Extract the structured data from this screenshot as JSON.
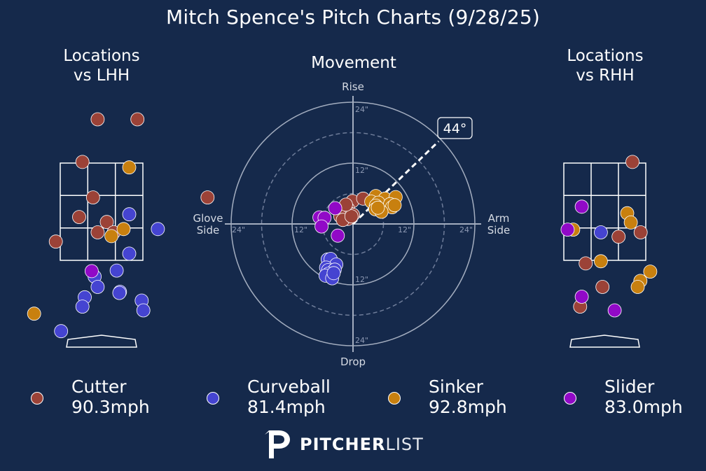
{
  "title": "Mitch Spence's Pitch Charts (9/28/25)",
  "panels": {
    "lhh": {
      "title_line1": "Locations",
      "title_line2": "vs LHH"
    },
    "rhh": {
      "title_line1": "Locations",
      "title_line2": "vs RHH"
    },
    "movement": {
      "title": "Movement",
      "labels": {
        "top": "Rise",
        "bottom": "Drop",
        "left_1": "Glove",
        "left_2": "Side",
        "right_1": "Arm",
        "right_2": "Side"
      },
      "rings": [
        {
          "label": "12\"",
          "value": 12
        },
        {
          "label": "24\"",
          "value": 24
        }
      ],
      "arm_angle_label": "44°",
      "arm_angle": 44
    }
  },
  "pitch_colors": {
    "Cutter": "#9b4237",
    "Curveball": "#4544d1",
    "Sinker": "#c8800f",
    "Slider": "#9109c7"
  },
  "legend": [
    {
      "pitch": "Cutter",
      "speed": "90.3mph",
      "color": "#9b4237"
    },
    {
      "pitch": "Curveball",
      "speed": "81.4mph",
      "color": "#4544d1"
    },
    {
      "pitch": "Sinker",
      "speed": "92.8mph",
      "color": "#c8800f"
    },
    {
      "pitch": "Slider",
      "speed": "83.0mph",
      "color": "#9109c7"
    }
  ],
  "chart_data": [
    {
      "type": "scatter",
      "title": "Locations vs LHH",
      "xlabel": "",
      "ylabel": "",
      "units": "feet from center of plate (x), feet above ground (y)",
      "series": [
        {
          "name": "Cutter",
          "points": [
            [
              -0.12,
              4.16
            ],
            [
              1.09,
              4.16
            ],
            [
              -0.58,
              3.38
            ],
            [
              -0.26,
              2.73
            ],
            [
              3.22,
              2.73
            ],
            [
              -0.68,
              2.37
            ],
            [
              0.16,
              2.28
            ],
            [
              -0.12,
              2.09
            ],
            [
              0.37,
              2.09
            ],
            [
              -1.39,
              1.92
            ]
          ]
        },
        {
          "name": "Curveball",
          "points": [
            [
              0.84,
              2.42
            ],
            [
              1.71,
              2.15
            ],
            [
              0.84,
              1.7
            ],
            [
              0.46,
              1.39
            ],
            [
              -0.21,
              1.28
            ],
            [
              -0.12,
              1.09
            ],
            [
              0.56,
              1.0
            ],
            [
              0.54,
              0.98
            ],
            [
              -0.51,
              0.9
            ],
            [
              1.22,
              0.84
            ],
            [
              -0.58,
              0.73
            ],
            [
              1.27,
              0.66
            ],
            [
              -1.23,
              0.28
            ]
          ]
        },
        {
          "name": "Sinker",
          "points": [
            [
              0.84,
              3.28
            ],
            [
              0.67,
              2.15
            ],
            [
              0.3,
              2.02
            ],
            [
              -2.05,
              0.6
            ]
          ]
        },
        {
          "name": "Slider",
          "points": [
            [
              -0.3,
              1.38
            ]
          ]
        }
      ]
    },
    {
      "type": "scatter",
      "title": "Movement",
      "xlabel": "Arm Side",
      "ylabel": "Rise",
      "units": "inches of break",
      "series": [
        {
          "name": "Cutter",
          "points": [
            [
              -0.1,
              4.5
            ],
            [
              2.0,
              5.0
            ],
            [
              -1.5,
              3.5
            ],
            [
              -1.0,
              3.0
            ],
            [
              -2.0,
              2.5
            ],
            [
              -1.5,
              2.0
            ],
            [
              -0.5,
              2.0
            ],
            [
              0.0,
              1.8
            ],
            [
              -1.0,
              1.0
            ],
            [
              -2.5,
              1.5
            ],
            [
              -2.0,
              0.8
            ],
            [
              -0.3,
              1.5
            ],
            [
              -1.4,
              3.8
            ]
          ]
        },
        {
          "name": "Curveball",
          "points": [
            [
              -5.0,
              -7.0
            ],
            [
              -4.4,
              -6.9
            ],
            [
              -3.3,
              -8.0
            ],
            [
              -5.3,
              -8.6
            ],
            [
              -4.9,
              -9.1
            ],
            [
              -3.6,
              -9.0
            ],
            [
              -4.8,
              -9.8
            ],
            [
              -5.4,
              -10.2
            ],
            [
              -4.1,
              -10.7
            ],
            [
              -3.8,
              -9.7
            ]
          ]
        },
        {
          "name": "Sinker",
          "points": [
            [
              4.5,
              5.5
            ],
            [
              6.3,
              5.0
            ],
            [
              8.4,
              5.3
            ],
            [
              3.6,
              4.4
            ],
            [
              5.0,
              4.2
            ],
            [
              4.5,
              3.6
            ],
            [
              7.3,
              3.9
            ],
            [
              7.7,
              3.3
            ],
            [
              4.4,
              2.9
            ],
            [
              5.6,
              2.4
            ],
            [
              8.2,
              3.7
            ],
            [
              4.9,
              3.2
            ]
          ]
        },
        {
          "name": "Slider",
          "points": [
            [
              -3.5,
              3.1
            ],
            [
              -6.6,
              1.3
            ],
            [
              -5.6,
              1.2
            ],
            [
              -6.2,
              -0.5
            ],
            [
              -3.0,
              -2.3
            ]
          ]
        }
      ],
      "rings": [
        6,
        12,
        18,
        24
      ],
      "range": [
        -24,
        24
      ]
    },
    {
      "type": "scatter",
      "title": "Locations vs RHH",
      "xlabel": "",
      "ylabel": "",
      "units": "feet from center of plate (x), feet above ground (y)",
      "series": [
        {
          "name": "Cutter",
          "points": [
            [
              0.84,
              3.38
            ],
            [
              1.09,
              2.09
            ],
            [
              0.42,
              2.01
            ],
            [
              -0.58,
              1.52
            ],
            [
              -0.07,
              1.09
            ],
            [
              -0.75,
              0.73
            ]
          ]
        },
        {
          "name": "Curveball",
          "points": [
            [
              -0.12,
              2.09
            ]
          ]
        },
        {
          "name": "Sinker",
          "points": [
            [
              0.68,
              2.44
            ],
            [
              0.79,
              2.27
            ],
            [
              -0.96,
              2.14
            ],
            [
              -0.12,
              1.56
            ],
            [
              1.38,
              1.37
            ],
            [
              1.08,
              1.2
            ],
            [
              1.0,
              1.09
            ]
          ]
        },
        {
          "name": "Slider",
          "points": [
            [
              -0.7,
              2.56
            ],
            [
              -1.13,
              2.14
            ],
            [
              -0.7,
              0.91
            ],
            [
              0.3,
              0.66
            ]
          ]
        }
      ]
    }
  ]
}
